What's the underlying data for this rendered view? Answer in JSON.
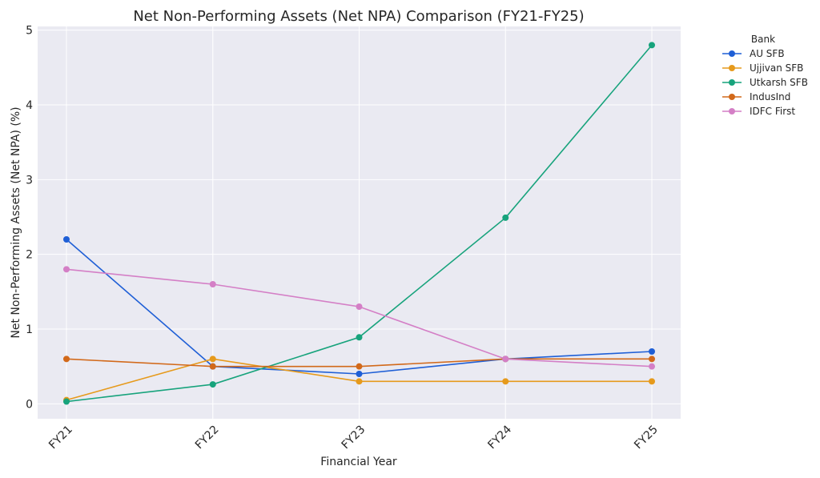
{
  "chart_data": {
    "type": "line",
    "title": "Net Non-Performing Assets (Net NPA) Comparison (FY21-FY25)",
    "xlabel": "Financial Year",
    "ylabel": "Net Non-Performing Assets (Net NPA) (%)",
    "categories": [
      "FY21",
      "FY22",
      "FY23",
      "FY24",
      "FY25"
    ],
    "ylim": [
      -0.2,
      5.05
    ],
    "yticks": [
      0,
      1,
      2,
      3,
      4,
      5
    ],
    "grid": true,
    "legend_title": "Bank",
    "legend_position": "outside-top-right",
    "series": [
      {
        "name": "AU SFB",
        "color": "#1f5fd6",
        "values": [
          2.2,
          0.5,
          0.4,
          0.6,
          0.7
        ]
      },
      {
        "name": "Ujjivan SFB",
        "color": "#e69a1c",
        "values": [
          0.05,
          0.6,
          0.3,
          0.3,
          0.3
        ]
      },
      {
        "name": "Utkarsh SFB",
        "color": "#17a37c",
        "values": [
          0.03,
          0.26,
          0.89,
          2.49,
          4.8
        ]
      },
      {
        "name": "IndusInd",
        "color": "#d2691a",
        "values": [
          0.6,
          0.5,
          0.5,
          0.6,
          0.6
        ]
      },
      {
        "name": "IDFC First",
        "color": "#d47fc6",
        "values": [
          1.8,
          1.6,
          1.3,
          0.6,
          0.5
        ]
      }
    ]
  }
}
